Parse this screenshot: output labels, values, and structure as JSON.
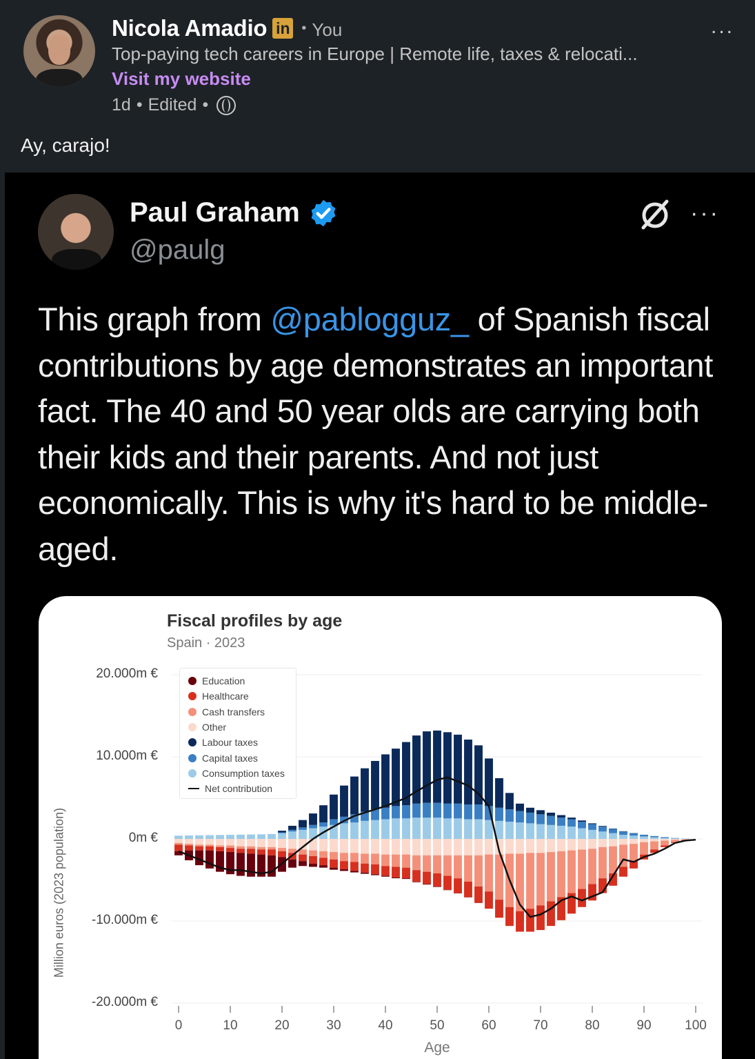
{
  "post": {
    "author": "Nicola Amadio",
    "badge": "in",
    "relation": "You",
    "headline": "Top-paying tech careers in Europe | Remote life, taxes & relocati...",
    "website_link": "Visit my website",
    "time": "1d",
    "edited": "Edited",
    "text": "Ay, carajo!",
    "more": "..."
  },
  "tweet": {
    "name": "Paul Graham",
    "handle": "@paulg",
    "more": "···",
    "text_before": "This graph from ",
    "mention": "@pablogguz_",
    "text_after": " of Spanish fiscal contributions by age demonstrates an important fact. The 40 and 50 year olds are carrying both their kids and their parents. And not just economically. This is why it's hard to be middle-aged."
  },
  "chart_data": {
    "type": "bar",
    "title": "Fiscal profiles by age",
    "subtitle": "Spain · 2023",
    "xlabel": "Age",
    "ylabel": "Million euros (2023 population)",
    "xlim": [
      0,
      100
    ],
    "ylim": [
      -20000,
      20000
    ],
    "x_ticks": [
      "0",
      "10",
      "20",
      "30",
      "40",
      "50",
      "60",
      "70",
      "80",
      "90",
      "100"
    ],
    "y_ticks": [
      "20.000m €",
      "10.000m €",
      "0m €",
      "-10.000m €",
      "-20.000m €"
    ],
    "legend_position": "top-left",
    "grid": true,
    "legend": [
      {
        "name": "Education",
        "color": "#67000d"
      },
      {
        "name": "Healthcare",
        "color": "#d7301f"
      },
      {
        "name": "Cash transfers",
        "color": "#f4907a"
      },
      {
        "name": "Other",
        "color": "#fbd9cc"
      },
      {
        "name": "Labour taxes",
        "color": "#0b2a5a"
      },
      {
        "name": "Capital taxes",
        "color": "#3a7fc4"
      },
      {
        "name": "Consumption taxes",
        "color": "#9ccbe8"
      },
      {
        "name": "Net contribution",
        "color": "#111111"
      }
    ],
    "x": [
      0,
      2,
      4,
      6,
      8,
      10,
      12,
      14,
      16,
      18,
      20,
      22,
      24,
      26,
      28,
      30,
      32,
      34,
      36,
      38,
      40,
      42,
      44,
      46,
      48,
      50,
      52,
      54,
      56,
      58,
      60,
      62,
      64,
      66,
      68,
      70,
      72,
      74,
      76,
      78,
      80,
      82,
      84,
      86,
      88,
      90,
      92,
      94,
      96,
      98,
      100
    ],
    "series": [
      {
        "name": "Labour taxes",
        "values": [
          0,
          0,
          0,
          0,
          0,
          0,
          0,
          0,
          0,
          0,
          200,
          500,
          900,
          1400,
          2100,
          3000,
          3800,
          4600,
          5300,
          5900,
          6500,
          7000,
          7700,
          8300,
          8700,
          8800,
          8700,
          8400,
          7900,
          7200,
          5800,
          3600,
          2000,
          900,
          600,
          500,
          400,
          300,
          200,
          150,
          100,
          80,
          60,
          40,
          20,
          10,
          0,
          0,
          0,
          0,
          0
        ]
      },
      {
        "name": "Capital taxes",
        "values": [
          0,
          0,
          0,
          0,
          0,
          0,
          0,
          0,
          0,
          0,
          100,
          200,
          300,
          400,
          500,
          700,
          800,
          1000,
          1100,
          1300,
          1400,
          1500,
          1600,
          1700,
          1800,
          1800,
          1800,
          1800,
          1800,
          1800,
          1700,
          1600,
          1500,
          1400,
          1300,
          1200,
          1100,
          1000,
          900,
          800,
          700,
          600,
          500,
          400,
          300,
          200,
          150,
          100,
          50,
          20,
          0
        ]
      },
      {
        "name": "Consumption taxes",
        "values": [
          400,
          420,
          440,
          460,
          480,
          500,
          520,
          540,
          560,
          600,
          700,
          900,
          1100,
          1300,
          1500,
          1700,
          1900,
          2000,
          2200,
          2300,
          2400,
          2500,
          2500,
          2600,
          2600,
          2600,
          2500,
          2500,
          2400,
          2400,
          2300,
          2200,
          2100,
          2000,
          1900,
          1800,
          1700,
          1600,
          1500,
          1300,
          1100,
          900,
          700,
          500,
          400,
          300,
          200,
          120,
          60,
          20,
          0
        ]
      },
      {
        "name": "Education",
        "values": [
          -500,
          -1200,
          -1800,
          -2200,
          -2500,
          -2700,
          -2800,
          -2800,
          -2700,
          -2600,
          -1800,
          -1000,
          -600,
          -400,
          -300,
          -250,
          -200,
          -180,
          -150,
          -120,
          -100,
          -90,
          -80,
          -70,
          -60,
          -50,
          -40,
          -30,
          -20,
          -10,
          0,
          0,
          0,
          0,
          0,
          0,
          0,
          0,
          0,
          0,
          0,
          0,
          0,
          0,
          0,
          0,
          0,
          0,
          0,
          0,
          0
        ]
      },
      {
        "name": "Healthcare",
        "values": [
          -800,
          -600,
          -500,
          -500,
          -500,
          -500,
          -500,
          -600,
          -600,
          -700,
          -700,
          -800,
          -800,
          -900,
          -900,
          -1000,
          -1000,
          -1100,
          -1100,
          -1200,
          -1200,
          -1300,
          -1300,
          -1400,
          -1500,
          -1600,
          -1700,
          -1800,
          -1900,
          -2000,
          -2100,
          -2200,
          -2300,
          -2500,
          -2800,
          -3000,
          -3000,
          -2800,
          -2500,
          -2200,
          -2000,
          -1800,
          -1500,
          -1200,
          -900,
          -600,
          -400,
          -200,
          -100,
          -50,
          0
        ]
      },
      {
        "name": "Cash transfers",
        "values": [
          -200,
          -200,
          -200,
          -200,
          -200,
          -300,
          -300,
          -300,
          -300,
          -300,
          -400,
          -500,
          -600,
          -700,
          -800,
          -900,
          -1000,
          -1100,
          -1200,
          -1300,
          -1400,
          -1500,
          -1600,
          -1800,
          -2000,
          -2200,
          -2500,
          -2800,
          -3200,
          -3800,
          -4500,
          -5500,
          -6500,
          -7000,
          -6800,
          -6400,
          -6000,
          -5600,
          -5200,
          -4800,
          -4300,
          -3800,
          -3300,
          -2700,
          -2100,
          -1500,
          -1000,
          -600,
          -300,
          -100,
          0
        ]
      },
      {
        "name": "Other",
        "values": [
          -500,
          -600,
          -700,
          -700,
          -800,
          -800,
          -900,
          -900,
          -1000,
          -1000,
          -1100,
          -1200,
          -1300,
          -1400,
          -1500,
          -1600,
          -1700,
          -1700,
          -1800,
          -1800,
          -1900,
          -1900,
          -1900,
          -2000,
          -2000,
          -2000,
          -2000,
          -2000,
          -2000,
          -2000,
          -1900,
          -1900,
          -1800,
          -1800,
          -1700,
          -1700,
          -1600,
          -1500,
          -1400,
          -1300,
          -1200,
          -1000,
          -900,
          -700,
          -600,
          -400,
          -300,
          -200,
          -100,
          -50,
          0
        ]
      },
      {
        "name": "Net contribution",
        "values": [
          -1500,
          -2000,
          -2500,
          -3000,
          -3500,
          -3800,
          -3800,
          -4000,
          -4200,
          -4000,
          -3000,
          -2000,
          -1000,
          0,
          800,
          1500,
          2200,
          2800,
          3200,
          3600,
          4000,
          4500,
          5000,
          5800,
          6500,
          7200,
          7500,
          7000,
          6500,
          5500,
          4000,
          -1500,
          -5000,
          -8000,
          -9500,
          -9200,
          -8500,
          -7500,
          -7000,
          -7500,
          -7000,
          -6500,
          -4500,
          -2500,
          -2800,
          -2200,
          -1800,
          -1200,
          -500,
          -200,
          -100
        ]
      }
    ]
  }
}
